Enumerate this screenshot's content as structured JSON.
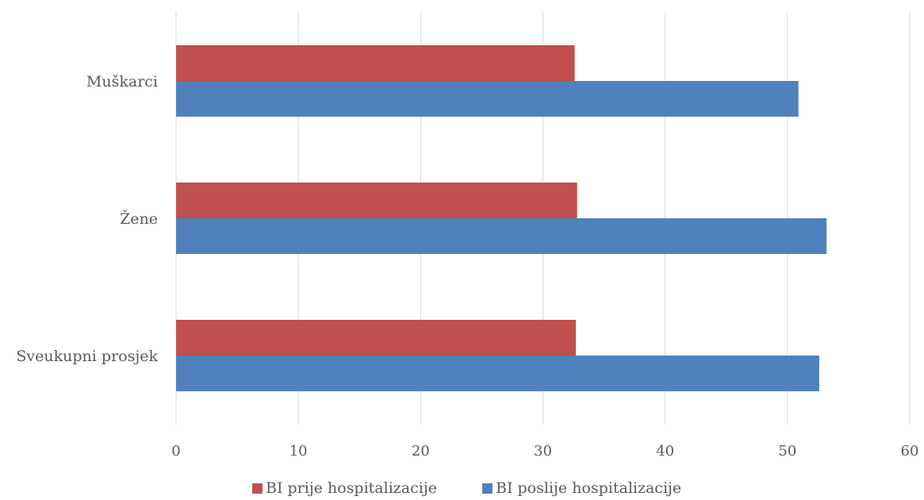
{
  "chart_data": {
    "type": "bar",
    "orientation": "horizontal",
    "categories": [
      "Muškarci",
      "Žene",
      "Sveukupni prosjek"
    ],
    "series": [
      {
        "name": "BI prije hospitalizacije",
        "values": [
          32.6,
          32.8,
          32.7
        ],
        "color": "#c0504d"
      },
      {
        "name": "BI poslije hospitalizacije",
        "values": [
          50.9,
          53.2,
          52.6
        ],
        "color": "#4f81bd"
      }
    ],
    "xlim": [
      0,
      60
    ],
    "xticks": [
      "0",
      "10",
      "20",
      "30",
      "40",
      "50",
      "60"
    ],
    "title": "",
    "xlabel": "",
    "ylabel": "",
    "grid": "vertical",
    "legend": "bottom"
  }
}
